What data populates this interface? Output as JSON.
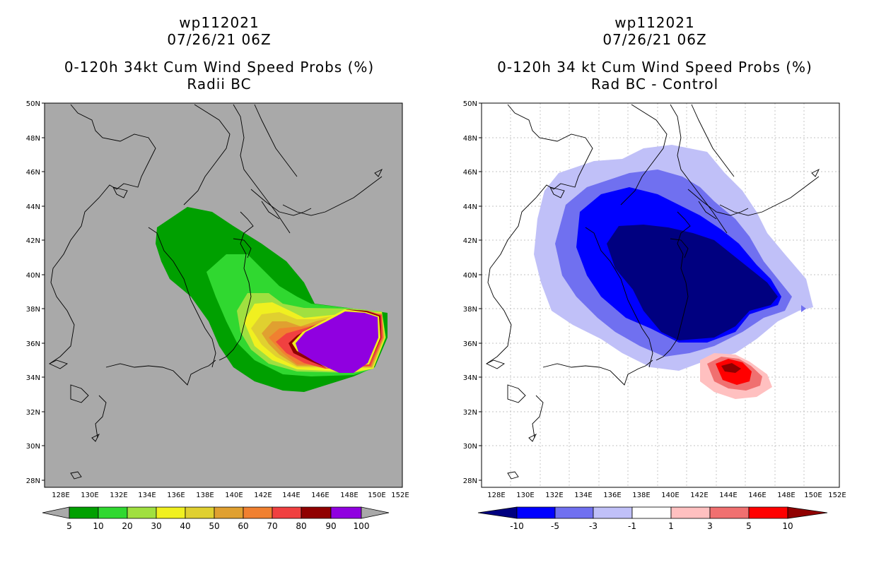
{
  "left_panel": {
    "title_line1": "wp112021",
    "title_line2": "07/26/21 06Z",
    "title_line3": "0-120h 34kt Cum Wind Speed Probs (%)",
    "title_line4": "Radii BC",
    "background_color": "#a9a9a9",
    "colorbar": {
      "levels": [
        "5",
        "10",
        "20",
        "30",
        "40",
        "50",
        "60",
        "70",
        "80",
        "90",
        "100"
      ],
      "colors": [
        "#00a000",
        "#30d830",
        "#a0e040",
        "#f0f020",
        "#e0d030",
        "#e0a030",
        "#f08030",
        "#f04040",
        "#900000",
        "#9000e0"
      ]
    }
  },
  "right_panel": {
    "title_line1": "wp112021",
    "title_line2": "07/26/21 06Z",
    "title_line3": "0-120h 34 kt Cum Wind Speed Probs (%)",
    "title_line4": "Rad BC - Control",
    "background_color": "#ffffff",
    "colorbar": {
      "levels": [
        "-10",
        "-5",
        "-3",
        "-1",
        "1",
        "3",
        "5",
        "10"
      ],
      "colors": [
        "#000080",
        "#0000ff",
        "#7070f0",
        "#c0c0f8",
        "#ffffff",
        "#ffc0c0",
        "#f07070",
        "#ff0000",
        "#900000"
      ]
    }
  },
  "axes": {
    "lat_labels": [
      "50N",
      "48N",
      "46N",
      "44N",
      "42N",
      "40N",
      "38N",
      "36N",
      "34N",
      "32N",
      "30N",
      "28N"
    ],
    "lon_labels": [
      "128E",
      "130E",
      "132E",
      "134E",
      "136E",
      "138E",
      "140E",
      "142E",
      "144E",
      "146E",
      "148E",
      "150E",
      "152E"
    ]
  }
}
